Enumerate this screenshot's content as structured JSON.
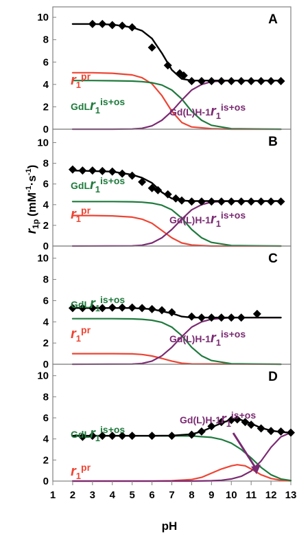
{
  "chart_data": {
    "type": "line",
    "x_label": "pH",
    "y_label_main": "r",
    "y_label_sub": "1p",
    "y_label_unit": "(mM",
    "y_label_unit_mid": "·s",
    "y_label_unit_end": ")",
    "unit_exponent": "-1",
    "xlim": [
      1,
      13
    ],
    "x_ticks": [
      "1",
      "2",
      "3",
      "4",
      "5",
      "6",
      "7",
      "8",
      "9",
      "10",
      "11",
      "12",
      "13"
    ],
    "ylim": [
      0,
      10.5
    ],
    "y_ticks": [
      "0",
      "2",
      "4",
      "6",
      "8",
      "10"
    ],
    "colors": {
      "total": "#000000",
      "pr": "#ee4433",
      "inner": "#1e7a3c",
      "hyd": "#7a2a72"
    },
    "panels": [
      {
        "letter": "A",
        "series": [
          {
            "key": "pr",
            "x": [
              2,
              3,
              4,
              5,
              5.5,
              6,
              6.5,
              7,
              7.5,
              8,
              9,
              10,
              12.5
            ],
            "y": [
              5.05,
              5.05,
              5.0,
              4.85,
              4.6,
              4.05,
              3.0,
              1.6,
              0.6,
              0.2,
              0.05,
              0,
              0
            ]
          },
          {
            "key": "inner",
            "x": [
              2,
              3,
              4,
              5,
              5.5,
              6,
              6.5,
              7,
              7.5,
              8,
              8.5,
              9,
              10,
              12.5
            ],
            "y": [
              4.35,
              4.35,
              4.33,
              4.3,
              4.25,
              4.15,
              3.95,
              3.5,
              2.7,
              1.6,
              0.8,
              0.35,
              0.05,
              0
            ]
          },
          {
            "key": "hyd",
            "x": [
              2,
              4,
              5,
              5.5,
              6,
              6.5,
              7,
              7.5,
              8,
              8.5,
              9,
              10,
              12.5
            ],
            "y": [
              0,
              0,
              0.02,
              0.08,
              0.3,
              0.8,
              1.6,
              2.6,
              3.5,
              4.0,
              4.25,
              4.35,
              4.35
            ]
          },
          {
            "key": "total",
            "x": [
              2,
              3,
              4,
              5,
              5.5,
              6,
              6.5,
              7,
              7.5,
              8,
              9,
              10,
              12.5
            ],
            "y": [
              9.4,
              9.4,
              9.35,
              9.1,
              8.8,
              8.1,
              6.8,
              5.3,
              4.5,
              4.35,
              4.35,
              4.35,
              4.35
            ]
          }
        ],
        "points": {
          "x": [
            3,
            3.5,
            4,
            4.5,
            5,
            6,
            6.8,
            7.4,
            7.6,
            8,
            8.5,
            9,
            9.5,
            10,
            10.5,
            11,
            11.5,
            12,
            12.5
          ],
          "y": [
            9.4,
            9.4,
            9.3,
            9.25,
            9.1,
            7.3,
            5.7,
            5.0,
            4.8,
            4.3,
            4.3,
            4.3,
            4.3,
            4.3,
            4.3,
            4.3,
            4.3,
            4.3,
            4.3
          ]
        },
        "labels": [
          {
            "main": "r",
            "sub": "1",
            "sup": "pr",
            "key": "pr",
            "pre": ""
          },
          {
            "main": "r",
            "sub": "1",
            "sup": "is+os",
            "key": "inner",
            "pre": "GdL"
          },
          {
            "main": "r",
            "sub": "1",
            "sup": "is+os",
            "key": "hyd",
            "pre": "Gd(L)H-1"
          }
        ]
      },
      {
        "letter": "B",
        "series": [
          {
            "key": "pr",
            "x": [
              2,
              3,
              4,
              5,
              5.5,
              6,
              6.5,
              7,
              7.5,
              8,
              9,
              12.5
            ],
            "y": [
              2.95,
              2.95,
              2.92,
              2.8,
              2.6,
              2.2,
              1.5,
              0.8,
              0.3,
              0.1,
              0,
              0
            ]
          },
          {
            "key": "inner",
            "x": [
              2,
              3,
              4,
              5,
              5.5,
              6,
              6.5,
              7,
              7.5,
              8,
              8.5,
              9,
              10,
              12.5
            ],
            "y": [
              4.3,
              4.3,
              4.3,
              4.28,
              4.24,
              4.15,
              3.95,
              3.5,
              2.7,
              1.6,
              0.8,
              0.35,
              0.05,
              0
            ]
          },
          {
            "key": "hyd",
            "x": [
              2,
              5,
              5.5,
              6,
              6.5,
              7,
              7.5,
              8,
              8.5,
              9,
              10,
              12.5
            ],
            "y": [
              0,
              0.02,
              0.08,
              0.3,
              0.8,
              1.6,
              2.6,
              3.5,
              4.0,
              4.25,
              4.35,
              4.35
            ]
          },
          {
            "key": "total",
            "x": [
              2,
              3,
              4,
              5,
              5.5,
              6,
              6.5,
              7,
              7.5,
              8,
              9,
              12.5
            ],
            "y": [
              7.3,
              7.25,
              7.2,
              6.9,
              6.6,
              6.1,
              5.2,
              4.6,
              4.4,
              4.35,
              4.35,
              4.35
            ]
          }
        ],
        "points": {
          "x": [
            2,
            2.5,
            3,
            3.5,
            4,
            4.5,
            5,
            5.5,
            6,
            6.3,
            6.8,
            7.2,
            7.5,
            8,
            8.5,
            9,
            9.5,
            10,
            10.5,
            11,
            11.5,
            12,
            12.5
          ],
          "y": [
            7.4,
            7.3,
            7.3,
            7.25,
            7.2,
            7.0,
            6.8,
            6.2,
            5.6,
            5.4,
            5.0,
            4.6,
            4.4,
            4.3,
            4.3,
            4.3,
            4.3,
            4.3,
            4.3,
            4.3,
            4.3,
            4.3,
            4.3
          ]
        },
        "labels": [
          {
            "main": "r",
            "sub": "1",
            "sup": "is+os",
            "key": "inner",
            "pre": "GdL"
          },
          {
            "main": "r",
            "sub": "1",
            "sup": "pr",
            "key": "pr",
            "pre": ""
          },
          {
            "main": "r",
            "sub": "1",
            "sup": "is+os",
            "key": "hyd",
            "pre": "Gd(L)H-1"
          }
        ]
      },
      {
        "letter": "C",
        "series": [
          {
            "key": "pr",
            "x": [
              2,
              3,
              4,
              5,
              5.5,
              6,
              6.5,
              7,
              7.5,
              8,
              12.5
            ],
            "y": [
              1.0,
              1.0,
              1.0,
              0.98,
              0.92,
              0.78,
              0.55,
              0.3,
              0.1,
              0.03,
              0
            ]
          },
          {
            "key": "inner",
            "x": [
              2,
              3,
              4,
              5,
              5.5,
              6,
              6.5,
              7,
              7.5,
              8,
              8.5,
              9,
              10,
              12.5
            ],
            "y": [
              4.3,
              4.3,
              4.3,
              4.28,
              4.24,
              4.15,
              3.95,
              3.5,
              2.7,
              1.6,
              0.8,
              0.35,
              0.05,
              0
            ]
          },
          {
            "key": "hyd",
            "x": [
              2,
              5,
              5.5,
              6,
              6.5,
              7,
              7.5,
              8,
              8.5,
              9,
              10,
              12.5
            ],
            "y": [
              0,
              0.02,
              0.08,
              0.3,
              0.8,
              1.6,
              2.6,
              3.5,
              4.0,
              4.25,
              4.4,
              4.4
            ]
          },
          {
            "key": "total",
            "x": [
              2,
              3,
              4,
              5,
              6,
              7,
              7.5,
              8,
              9,
              10,
              12.5
            ],
            "y": [
              5.3,
              5.3,
              5.3,
              5.3,
              5.2,
              4.8,
              4.5,
              4.4,
              4.4,
              4.4,
              4.4
            ]
          }
        ],
        "points": {
          "x": [
            2,
            2.5,
            3,
            3.5,
            4,
            4.5,
            5,
            5.5,
            6,
            6.5,
            7,
            8,
            8.5,
            9,
            9.5,
            10,
            10.5,
            11.3
          ],
          "y": [
            5.3,
            5.3,
            5.3,
            5.3,
            5.35,
            5.35,
            5.35,
            5.3,
            5.2,
            5.1,
            4.9,
            4.5,
            4.4,
            4.4,
            4.4,
            4.4,
            4.4,
            4.75
          ]
        },
        "labels": [
          {
            "main": "r",
            "sub": "1",
            "sup": "is+os",
            "key": "inner",
            "pre": "GdL"
          },
          {
            "main": "r",
            "sub": "1",
            "sup": "pr",
            "key": "pr",
            "pre": ""
          },
          {
            "main": "r",
            "sub": "1",
            "sup": "is+os",
            "key": "hyd",
            "pre": "Gd(L)H-1"
          }
        ]
      },
      {
        "letter": "D",
        "series": [
          {
            "key": "pr",
            "x": [
              2,
              6,
              7,
              8,
              8.5,
              9,
              9.5,
              10,
              10.3,
              10.7,
              11,
              11.5,
              12,
              12.5,
              13
            ],
            "y": [
              0,
              0,
              0.03,
              0.15,
              0.35,
              0.75,
              1.15,
              1.45,
              1.55,
              1.45,
              1.15,
              0.6,
              0.25,
              0.08,
              0.02
            ]
          },
          {
            "key": "inner",
            "x": [
              2,
              4,
              6,
              8,
              9,
              9.5,
              10,
              10.5,
              11,
              11.5,
              12,
              12.5,
              13
            ],
            "y": [
              4.3,
              4.3,
              4.3,
              4.28,
              4.15,
              3.95,
              3.6,
              3.0,
              2.2,
              1.3,
              0.6,
              0.2,
              0.05
            ]
          },
          {
            "key": "hyd",
            "x": [
              2,
              8,
              9,
              9.5,
              10,
              10.5,
              11,
              11.5,
              12,
              12.5,
              13
            ],
            "y": [
              0,
              0,
              0.03,
              0.08,
              0.2,
              0.45,
              0.95,
              1.9,
              3.2,
              4.2,
              4.6
            ]
          },
          {
            "key": "total",
            "x": [
              2,
              4,
              6,
              7,
              8,
              8.5,
              9,
              9.5,
              10,
              10.5,
              11,
              11.5,
              12,
              12.5,
              13
            ],
            "y": [
              4.3,
              4.3,
              4.3,
              4.32,
              4.45,
              4.7,
              5.1,
              5.5,
              5.85,
              5.8,
              5.45,
              5.05,
              4.8,
              4.65,
              4.6
            ]
          }
        ],
        "points": {
          "x": [
            2.5,
            3,
            3.5,
            4,
            4.5,
            5,
            6,
            7,
            8,
            8.5,
            9,
            9.5,
            10,
            10.3,
            10.7,
            11,
            11.5,
            12,
            12.5,
            13
          ],
          "y": [
            4.2,
            4.3,
            4.3,
            4.3,
            4.3,
            4.3,
            4.3,
            4.3,
            4.4,
            4.7,
            5.2,
            5.6,
            5.8,
            5.85,
            5.6,
            5.35,
            5.0,
            4.75,
            4.7,
            4.6
          ]
        },
        "labels": [
          {
            "main": "r",
            "sub": "1",
            "sup": "is+os",
            "key": "hyd",
            "pre": "Gd(L)H-1"
          },
          {
            "main": "r",
            "sub": "1",
            "sup": "is+os",
            "key": "inner",
            "pre": "GdL"
          },
          {
            "main": "r",
            "sub": "1",
            "sup": "pr",
            "key": "pr",
            "pre": ""
          }
        ]
      }
    ]
  }
}
